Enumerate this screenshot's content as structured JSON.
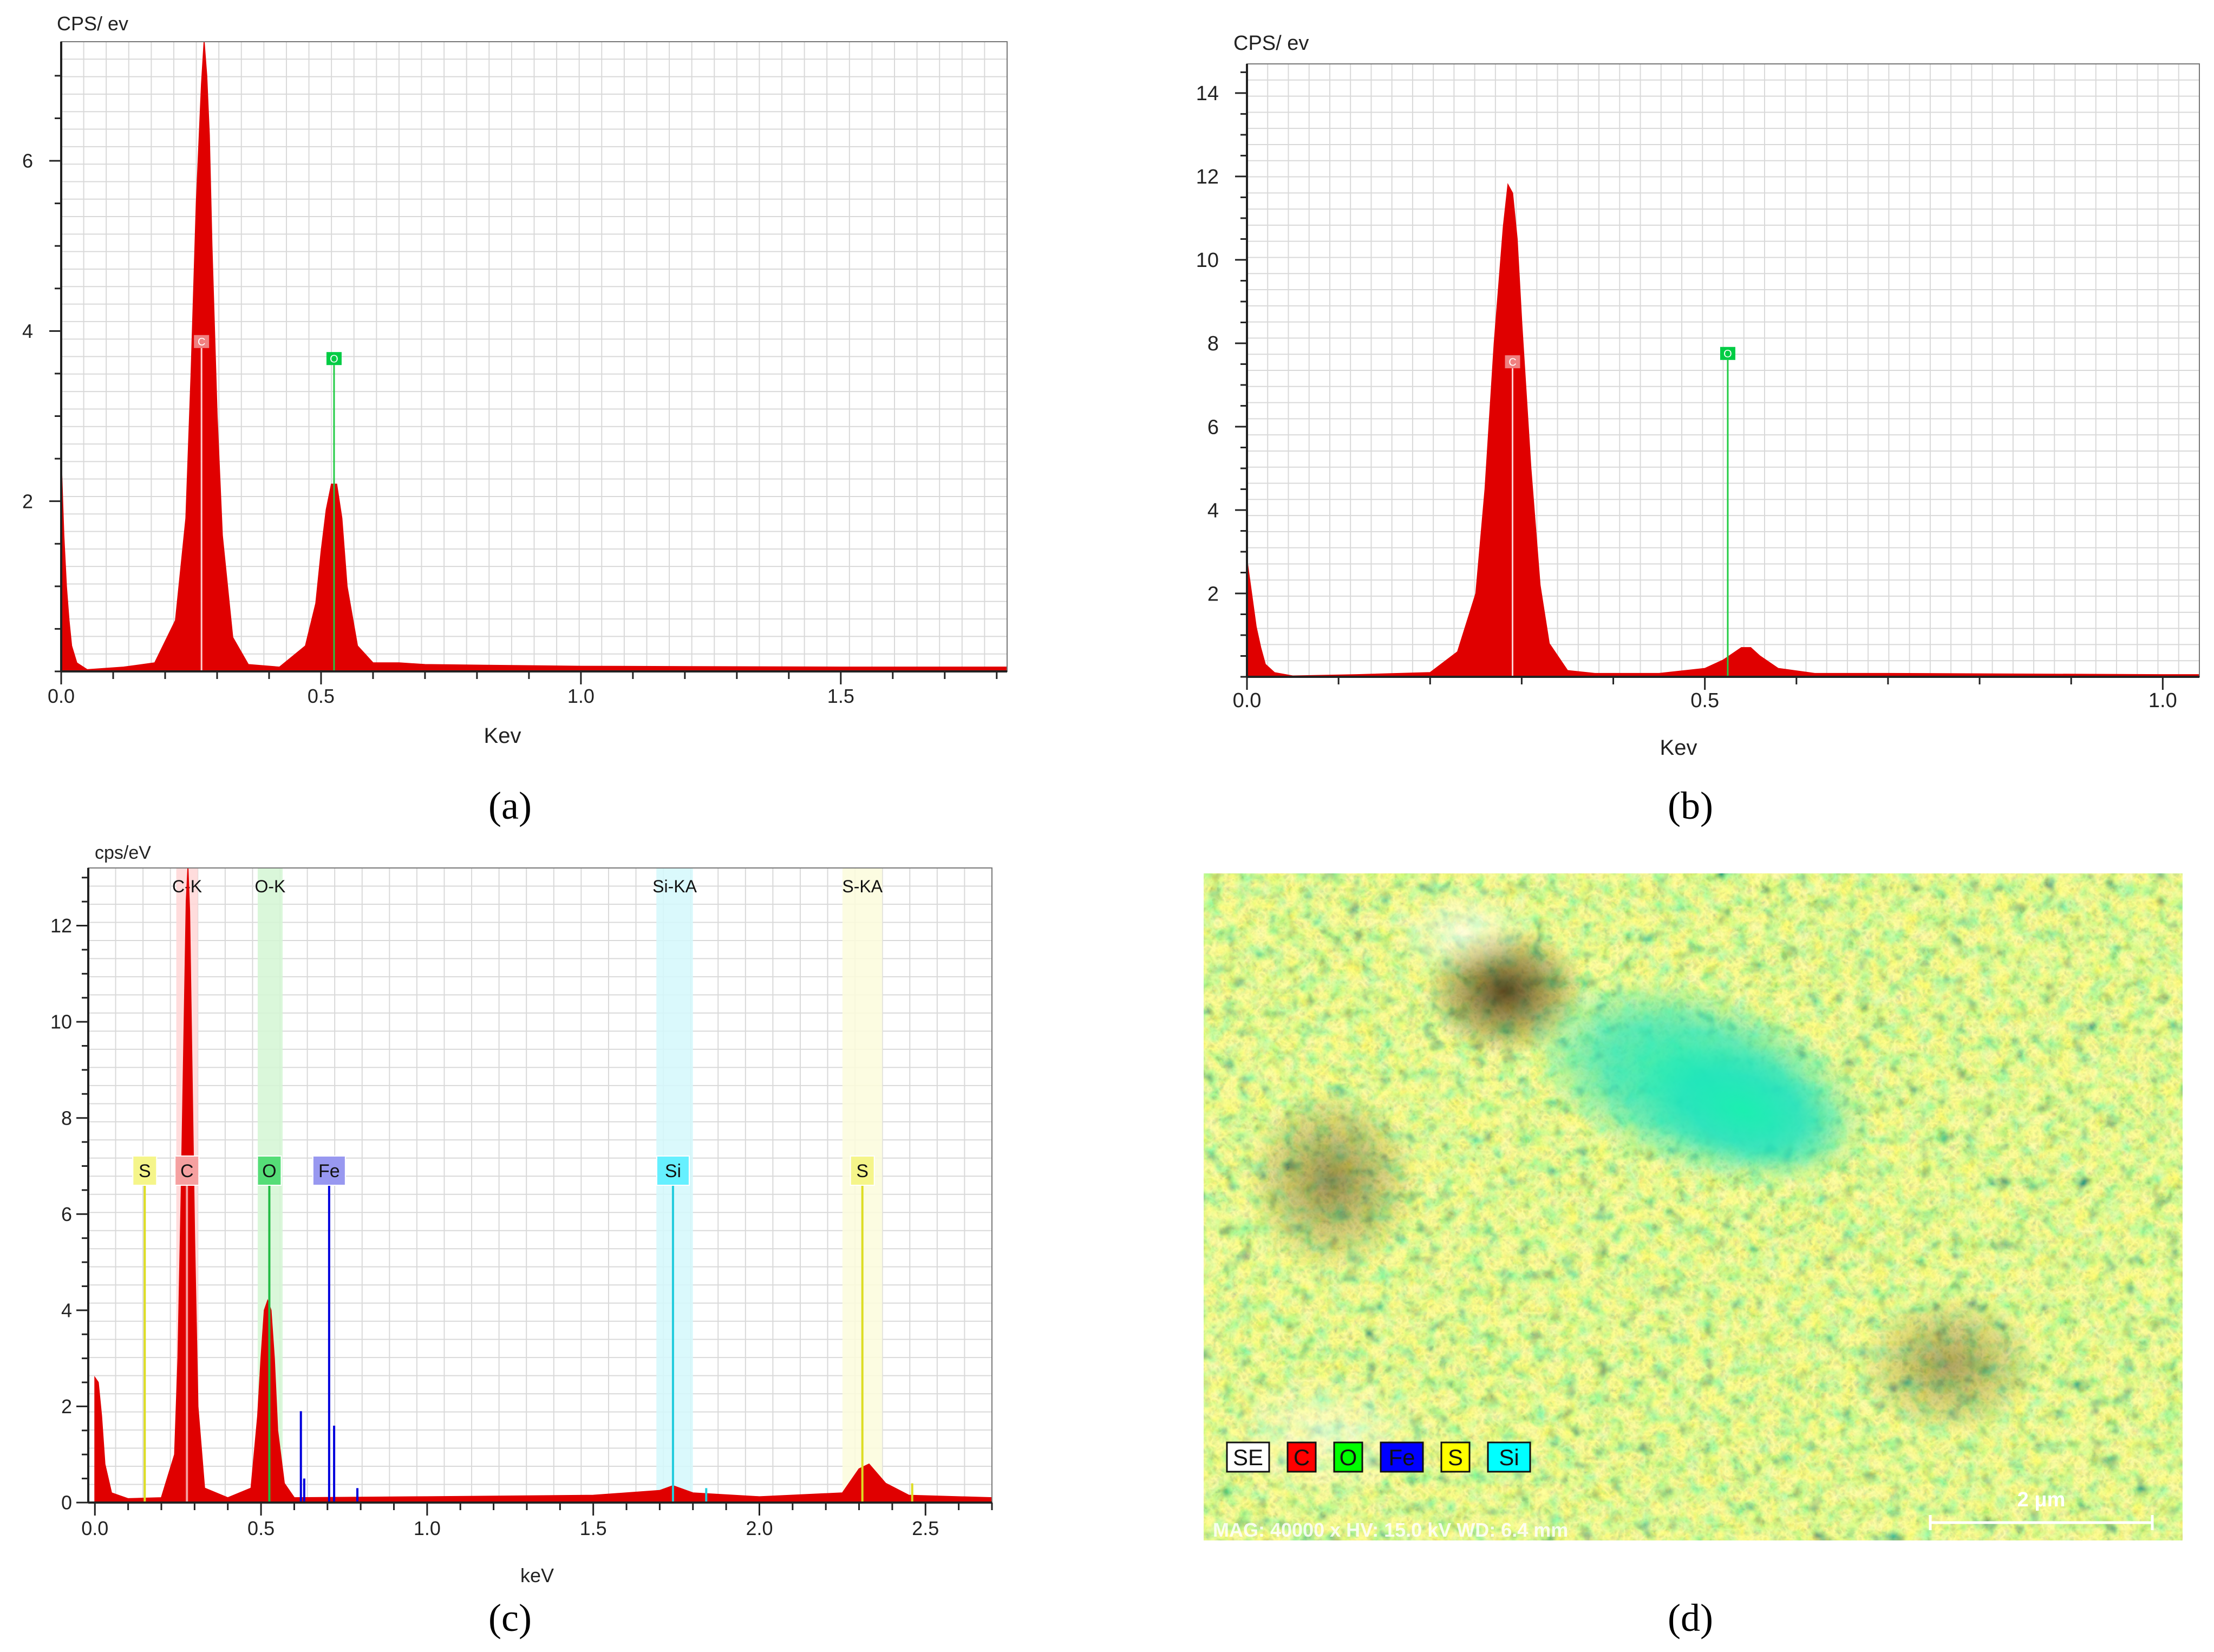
{
  "captions": {
    "a": "(a)",
    "b": "(b)",
    "c": "(c)",
    "d": "(d)"
  },
  "chart_data": [
    {
      "panel": "a",
      "type": "area",
      "title": "",
      "ylabel": "CPS/ ev",
      "xlabel": "Kev",
      "xlim": [
        0,
        1.82
      ],
      "ylim": [
        0,
        7.4
      ],
      "xticks": [
        0.0,
        0.5,
        1.0,
        1.5
      ],
      "xtick_labels": [
        "0.0",
        "0.5",
        "1.0",
        "1.5"
      ],
      "yticks": [
        2,
        4,
        6
      ],
      "ytick_labels": [
        "2",
        "4",
        "6"
      ],
      "color": "#e00000",
      "series": [
        {
          "name": "spectrum",
          "x": [
            0.0,
            0.005,
            0.01,
            0.015,
            0.02,
            0.03,
            0.05,
            0.12,
            0.18,
            0.22,
            0.24,
            0.25,
            0.26,
            0.27,
            0.275,
            0.28,
            0.285,
            0.29,
            0.3,
            0.31,
            0.33,
            0.36,
            0.42,
            0.47,
            0.49,
            0.5,
            0.51,
            0.52,
            0.53,
            0.54,
            0.55,
            0.57,
            0.6,
            0.65,
            0.7,
            1.0,
            1.5,
            1.82
          ],
          "y": [
            2.5,
            1.6,
            1.0,
            0.6,
            0.3,
            0.1,
            0.02,
            0.05,
            0.1,
            0.6,
            1.8,
            3.5,
            5.5,
            6.9,
            7.4,
            7.0,
            6.3,
            5.0,
            3.0,
            1.6,
            0.4,
            0.08,
            0.05,
            0.3,
            0.8,
            1.4,
            1.9,
            2.2,
            2.2,
            1.8,
            1.0,
            0.3,
            0.1,
            0.1,
            0.08,
            0.06,
            0.05,
            0.05
          ]
        }
      ],
      "markers": [
        {
          "element": "C",
          "x": 0.27,
          "height": 3.8,
          "color": "#f08080"
        },
        {
          "element": "O",
          "x": 0.525,
          "height": 3.6,
          "color": "#00cc44"
        }
      ]
    },
    {
      "panel": "b",
      "type": "area",
      "title": "",
      "ylabel": "CPS/ ev",
      "xlabel": "Kev",
      "xlim": [
        0,
        1.04
      ],
      "ylim": [
        0,
        14.7
      ],
      "xticks": [
        0.0,
        0.5,
        1.0
      ],
      "xtick_labels": [
        "0.0",
        "0.5",
        "1.0"
      ],
      "yticks": [
        2,
        4,
        6,
        8,
        10,
        12,
        14
      ],
      "ytick_labels": [
        "2",
        "4",
        "6",
        "8",
        "10",
        "12",
        "14"
      ],
      "color": "#e00000",
      "series": [
        {
          "name": "spectrum",
          "x": [
            0.0,
            0.005,
            0.01,
            0.015,
            0.02,
            0.03,
            0.05,
            0.12,
            0.2,
            0.23,
            0.25,
            0.26,
            0.27,
            0.28,
            0.285,
            0.29,
            0.295,
            0.3,
            0.31,
            0.32,
            0.33,
            0.35,
            0.38,
            0.45,
            0.5,
            0.52,
            0.54,
            0.55,
            0.56,
            0.58,
            0.62,
            0.7,
            1.0,
            1.04
          ],
          "y": [
            2.8,
            2.0,
            1.2,
            0.7,
            0.3,
            0.1,
            0.02,
            0.05,
            0.1,
            0.6,
            2.0,
            4.5,
            8.0,
            10.8,
            11.8,
            11.6,
            10.5,
            8.5,
            5.0,
            2.2,
            0.8,
            0.15,
            0.08,
            0.08,
            0.2,
            0.4,
            0.7,
            0.7,
            0.5,
            0.2,
            0.08,
            0.08,
            0.05,
            0.05
          ]
        }
      ],
      "markers": [
        {
          "element": "C",
          "x": 0.29,
          "height": 7.4,
          "color": "#f08080"
        },
        {
          "element": "O",
          "x": 0.525,
          "height": 7.6,
          "color": "#00cc44"
        }
      ]
    },
    {
      "panel": "c",
      "type": "area",
      "title": "",
      "ylabel": "cps/eV",
      "xlabel": "keV",
      "xlim": [
        -0.02,
        2.7
      ],
      "ylim": [
        0,
        13.2
      ],
      "xticks": [
        0.0,
        0.5,
        1.0,
        1.5,
        2.0,
        2.5
      ],
      "xtick_labels": [
        "0.0",
        "0.5",
        "1.0",
        "1.5",
        "2.0",
        "2.5"
      ],
      "yticks": [
        0,
        2,
        4,
        6,
        8,
        10,
        12
      ],
      "ytick_labels": [
        "0",
        "2",
        "4",
        "6",
        "8",
        "10",
        "12"
      ],
      "color": "#e00000",
      "series": [
        {
          "name": "spectrum",
          "x": [
            0.0,
            0.01,
            0.02,
            0.03,
            0.05,
            0.1,
            0.2,
            0.24,
            0.25,
            0.26,
            0.27,
            0.275,
            0.28,
            0.285,
            0.29,
            0.3,
            0.31,
            0.33,
            0.4,
            0.47,
            0.49,
            0.5,
            0.51,
            0.52,
            0.53,
            0.54,
            0.55,
            0.57,
            0.6,
            1.0,
            1.5,
            1.7,
            1.74,
            1.8,
            2.0,
            2.25,
            2.3,
            2.33,
            2.38,
            2.45,
            2.7
          ],
          "y": [
            2.6,
            2.5,
            1.8,
            0.8,
            0.2,
            0.08,
            0.1,
            1.0,
            3.0,
            6.5,
            10.5,
            12.5,
            13.2,
            12.3,
            10.0,
            5.5,
            2.0,
            0.3,
            0.1,
            0.3,
            1.8,
            3.0,
            4.0,
            4.2,
            4.0,
            3.0,
            1.5,
            0.4,
            0.1,
            0.12,
            0.15,
            0.25,
            0.35,
            0.2,
            0.12,
            0.2,
            0.7,
            0.8,
            0.4,
            0.15,
            0.1
          ]
        }
      ],
      "bands": [
        {
          "label": "C-K",
          "x0": 0.245,
          "x1": 0.31,
          "color": "#ffd6d6"
        },
        {
          "label": "O-K",
          "x0": 0.49,
          "x1": 0.565,
          "color": "#d4f6d4"
        },
        {
          "label": "Si-KA",
          "x0": 1.69,
          "x1": 1.8,
          "color": "#d4f8fb"
        },
        {
          "label": "S-KA",
          "x0": 2.25,
          "x1": 2.37,
          "color": "#fbfbdc"
        }
      ],
      "markers": [
        {
          "element": "S",
          "x": 0.15,
          "height": 6.6,
          "color": "#f5f58a",
          "line": "#dddd22"
        },
        {
          "element": "C",
          "x": 0.277,
          "height": 6.6,
          "color": "#f5a0a0",
          "line": "#f5a0a0"
        },
        {
          "element": "O",
          "x": 0.525,
          "height": 6.6,
          "color": "#55dd77",
          "line": "#22bb44"
        },
        {
          "element": "Fe",
          "x": 0.705,
          "height": 6.6,
          "color": "#9898f0",
          "line": "#0000dd"
        },
        {
          "element": "Si",
          "x": 1.74,
          "height": 6.6,
          "color": "#66f0ff",
          "line": "#22ccdd"
        },
        {
          "element": "S",
          "x": 2.31,
          "height": 6.6,
          "color": "#f5f58a",
          "line": "#dddd22"
        }
      ],
      "minor_lines": [
        {
          "x": 0.62,
          "h": 1.9,
          "color": "#0000dd"
        },
        {
          "x": 0.63,
          "h": 0.5,
          "color": "#0000dd"
        },
        {
          "x": 0.72,
          "h": 1.6,
          "color": "#0000dd"
        },
        {
          "x": 0.79,
          "h": 0.3,
          "color": "#0000dd"
        },
        {
          "x": 1.84,
          "h": 0.3,
          "color": "#22ccdd"
        },
        {
          "x": 2.46,
          "h": 0.4,
          "color": "#dddd22"
        }
      ]
    }
  ],
  "map": {
    "legend": [
      "SE",
      "C",
      "O",
      "Fe",
      "S",
      "Si"
    ],
    "legend_colors": [
      "#ffffff",
      "#ff0000",
      "#00ff00",
      "#0000ff",
      "#ffff00",
      "#00ffff"
    ],
    "scale_bar": "2 μm",
    "info": "MAG: 40000 x  HV: 15.0 kV  WD: 6.4 mm"
  }
}
